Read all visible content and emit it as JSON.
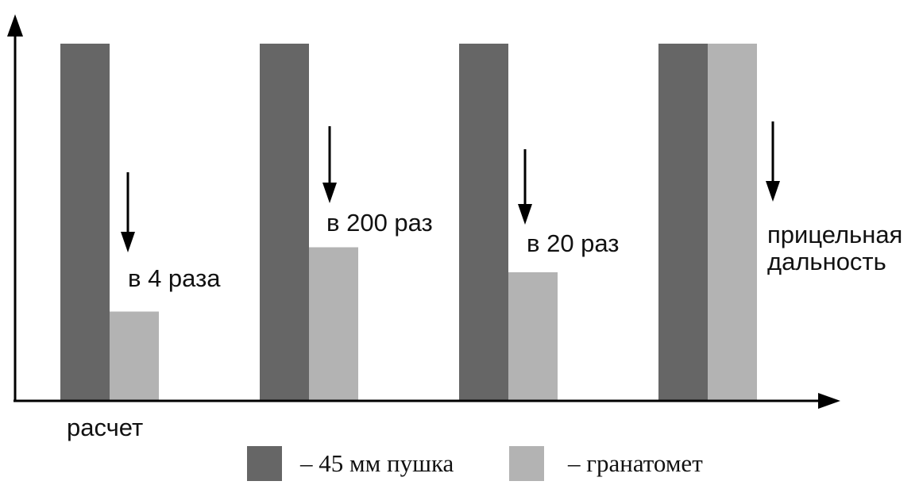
{
  "chart_data": {
    "type": "bar",
    "title": "",
    "xlabel": "",
    "ylabel": "",
    "ylim": [
      0,
      100
    ],
    "grid": false,
    "legend_position": "bottom",
    "colors": {
      "gun": "#666666",
      "grenade": "#b3b3b3",
      "axis": "#000000"
    },
    "categories": [
      "расчет",
      "",
      "",
      "прицельная дальность"
    ],
    "series": [
      {
        "name": "– 45 мм пушка",
        "values": [
          100,
          100,
          100,
          100
        ]
      },
      {
        "name": "– гранатомет",
        "values": [
          25,
          43,
          36,
          100
        ]
      }
    ],
    "annotations": [
      "в 4 раза",
      "в 200 раз",
      "в 20 раз",
      "прицельная дальность"
    ]
  }
}
